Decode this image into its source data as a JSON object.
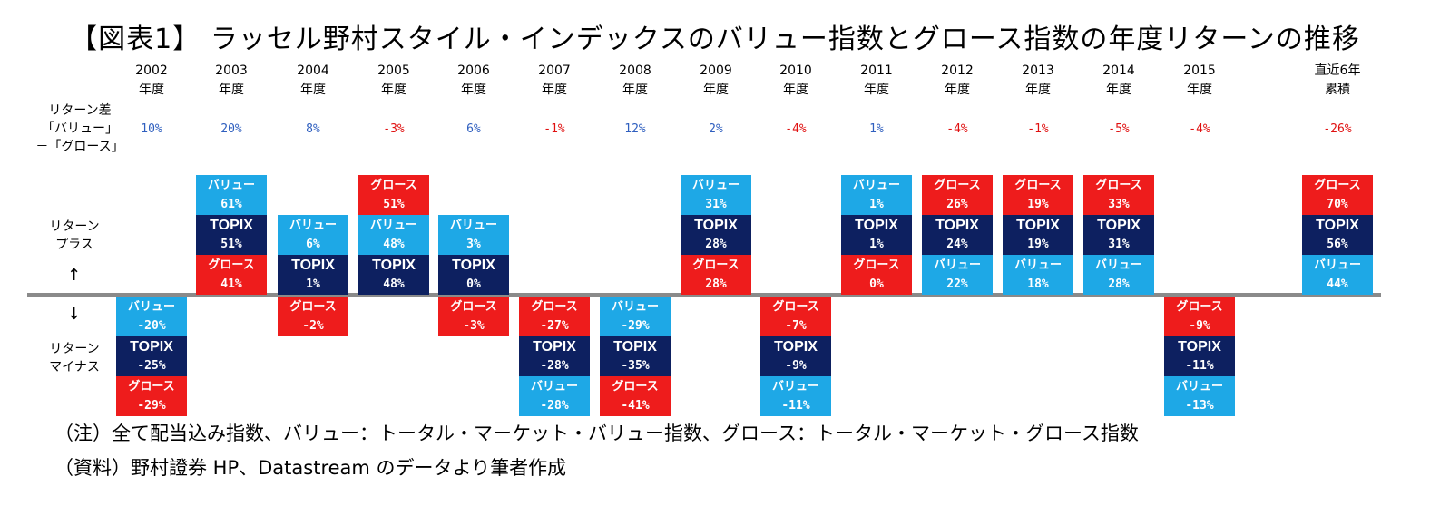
{
  "title": "【図表1】 ラッセル野村スタイル・インデックスのバリュー指数とグロース指数の年度リターンの推移",
  "row_labels": {
    "diff": [
      "リターン差",
      "「バリュー」",
      "－「グロース」"
    ],
    "plus": [
      "リターン",
      "プラス"
    ],
    "minus": [
      "リターン",
      "マイナス"
    ],
    "up_arrow": "↑",
    "down_arrow": "↓"
  },
  "colors": {
    "value": "#1ea8e6",
    "topix": "#0d2060",
    "growth": "#ee1c1c",
    "diff_positive": "#2f5fbf",
    "diff_negative": "#e01010",
    "axis": "#8a8a8a"
  },
  "labels": {
    "value": "バリュー",
    "topix": "TOPIX",
    "growth": "グロース"
  },
  "chart_data": {
    "type": "table",
    "columns": [
      {
        "year": [
          "2002",
          "年度"
        ],
        "diff": "10%",
        "cells": [
          [
            "value",
            "-20%"
          ],
          [
            "topix",
            "-25%"
          ],
          [
            "growth",
            "-29%"
          ]
        ]
      },
      {
        "year": [
          "2003",
          "年度"
        ],
        "diff": "20%",
        "cells": [
          [
            "value",
            "61%"
          ],
          [
            "topix",
            "51%"
          ],
          [
            "growth",
            "41%"
          ]
        ]
      },
      {
        "year": [
          "2004",
          "年度"
        ],
        "diff": "8%",
        "cells": [
          [
            "value",
            "6%"
          ],
          [
            "topix",
            "1%"
          ],
          [
            "growth",
            "-2%"
          ]
        ]
      },
      {
        "year": [
          "2005",
          "年度"
        ],
        "diff": "-3%",
        "cells": [
          [
            "growth",
            "51%"
          ],
          [
            "value",
            "48%"
          ],
          [
            "topix",
            "48%"
          ]
        ]
      },
      {
        "year": [
          "2006",
          "年度"
        ],
        "diff": "6%",
        "cells": [
          [
            "value",
            "3%"
          ],
          [
            "topix",
            "0%"
          ],
          [
            "growth",
            "-3%"
          ]
        ]
      },
      {
        "year": [
          "2007",
          "年度"
        ],
        "diff": "-1%",
        "cells": [
          [
            "growth",
            "-27%"
          ],
          [
            "topix",
            "-28%"
          ],
          [
            "value",
            "-28%"
          ]
        ]
      },
      {
        "year": [
          "2008",
          "年度"
        ],
        "diff": "12%",
        "cells": [
          [
            "value",
            "-29%"
          ],
          [
            "topix",
            "-35%"
          ],
          [
            "growth",
            "-41%"
          ]
        ]
      },
      {
        "year": [
          "2009",
          "年度"
        ],
        "diff": "2%",
        "cells": [
          [
            "value",
            "31%"
          ],
          [
            "topix",
            "28%"
          ],
          [
            "growth",
            "28%"
          ]
        ]
      },
      {
        "year": [
          "2010",
          "年度"
        ],
        "diff": "-4%",
        "cells": [
          [
            "growth",
            "-7%"
          ],
          [
            "topix",
            "-9%"
          ],
          [
            "value",
            "-11%"
          ]
        ]
      },
      {
        "year": [
          "2011",
          "年度"
        ],
        "diff": "1%",
        "cells": [
          [
            "value",
            "1%"
          ],
          [
            "topix",
            "1%"
          ],
          [
            "growth",
            "0%"
          ]
        ]
      },
      {
        "year": [
          "2012",
          "年度"
        ],
        "diff": "-4%",
        "cells": [
          [
            "growth",
            "26%"
          ],
          [
            "topix",
            "24%"
          ],
          [
            "value",
            "22%"
          ]
        ]
      },
      {
        "year": [
          "2013",
          "年度"
        ],
        "diff": "-1%",
        "cells": [
          [
            "growth",
            "19%"
          ],
          [
            "topix",
            "19%"
          ],
          [
            "value",
            "18%"
          ]
        ]
      },
      {
        "year": [
          "2014",
          "年度"
        ],
        "diff": "-5%",
        "cells": [
          [
            "growth",
            "33%"
          ],
          [
            "topix",
            "31%"
          ],
          [
            "value",
            "28%"
          ]
        ]
      },
      {
        "year": [
          "2015",
          "年度"
        ],
        "diff": "-4%",
        "cells": [
          [
            "growth",
            "-9%"
          ],
          [
            "topix",
            "-11%"
          ],
          [
            "value",
            "-13%"
          ]
        ]
      },
      {
        "year": [
          "直近6年",
          "累積"
        ],
        "diff": "-26%",
        "cells": [
          [
            "growth",
            "70%"
          ],
          [
            "topix",
            "56%"
          ],
          [
            "value",
            "44%"
          ]
        ]
      }
    ]
  },
  "notes": [
    "（注）全て配当込み指数、バリュー：トータル・マーケット・バリュー指数、グロース：トータル・マーケット・グロース指数",
    "（資料）野村證券 HP、Datastream のデータより筆者作成"
  ]
}
